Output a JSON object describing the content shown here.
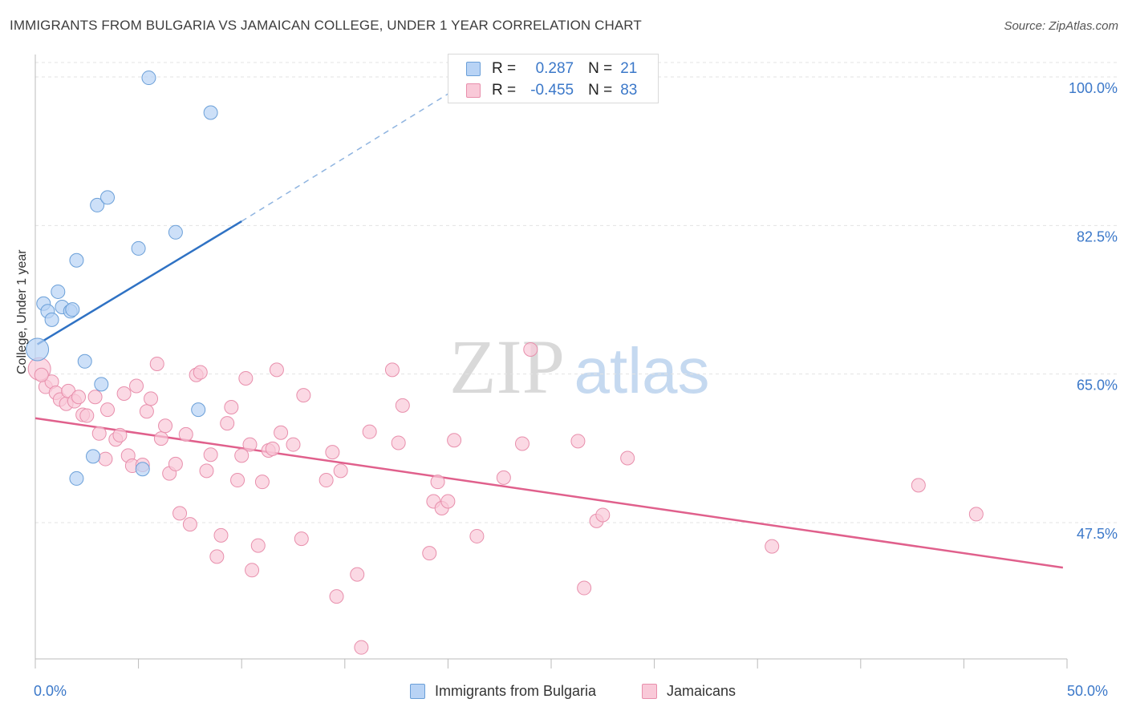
{
  "title": "IMMIGRANTS FROM BULGARIA VS JAMAICAN COLLEGE, UNDER 1 YEAR CORRELATION CHART",
  "source": "Source: ZipAtlas.com",
  "watermark": {
    "zip": "ZIP",
    "atlas": "atlas"
  },
  "legend_top": {
    "rows": [
      {
        "r_label": "R =",
        "r_value": "0.287",
        "n_label": "N =",
        "n_value": "21"
      },
      {
        "r_label": "R =",
        "r_value": "-0.455",
        "n_label": "N =",
        "n_value": "83"
      }
    ]
  },
  "colors": {
    "blue_fill": "#b8d3f5",
    "blue_stroke": "#6a9fd8",
    "blue_line": "#2f72c4",
    "pink_fill": "#f9c9d8",
    "pink_stroke": "#e88fac",
    "pink_line": "#e0608c",
    "axis_label": "#3b78c9",
    "grid": "#e3e3e3"
  },
  "chart_data": {
    "type": "scatter",
    "title": "IMMIGRANTS FROM BULGARIA VS JAMAICAN COLLEGE, UNDER 1 YEAR CORRELATION CHART",
    "xlabel": "",
    "ylabel": "College, Under 1 year",
    "xlim": [
      0,
      50
    ],
    "ylim": [
      31,
      102
    ],
    "x_tick_labels": [
      "0.0%",
      "50.0%"
    ],
    "y_ticks": [
      47.5,
      65.0,
      82.5,
      100.0
    ],
    "y_tick_labels": [
      "47.5%",
      "65.0%",
      "82.5%",
      "100.0%"
    ],
    "grid": true,
    "legend_position": "bottom",
    "series": [
      {
        "name": "Immigrants from Bulgaria",
        "color": "#b8d3f5",
        "points": [
          {
            "x": 0.1,
            "y": 67.9,
            "big": true
          },
          {
            "x": 0.4,
            "y": 73.3
          },
          {
            "x": 0.6,
            "y": 72.4
          },
          {
            "x": 0.8,
            "y": 71.4
          },
          {
            "x": 1.1,
            "y": 74.7
          },
          {
            "x": 1.3,
            "y": 72.9
          },
          {
            "x": 1.7,
            "y": 72.4
          },
          {
            "x": 1.8,
            "y": 72.6
          },
          {
            "x": 2.0,
            "y": 78.4
          },
          {
            "x": 2.4,
            "y": 66.5
          },
          {
            "x": 2.8,
            "y": 55.3
          },
          {
            "x": 2.0,
            "y": 52.7
          },
          {
            "x": 3.0,
            "y": 84.9
          },
          {
            "x": 3.2,
            "y": 63.8
          },
          {
            "x": 3.5,
            "y": 85.8
          },
          {
            "x": 5.0,
            "y": 79.8
          },
          {
            "x": 5.2,
            "y": 53.8
          },
          {
            "x": 5.5,
            "y": 99.9
          },
          {
            "x": 6.8,
            "y": 81.7
          },
          {
            "x": 7.9,
            "y": 60.8
          },
          {
            "x": 8.5,
            "y": 95.8
          }
        ],
        "trend": {
          "x1": 0.1,
          "y1": 68.5,
          "x2": 10.0,
          "y2": 83.0,
          "dash_x2": 21.0,
          "dash_y2": 99.5
        }
      },
      {
        "name": "Jamaicans",
        "color": "#f9c9d8",
        "points": [
          {
            "x": 0.2,
            "y": 65.6,
            "big": true
          },
          {
            "x": 0.5,
            "y": 63.5
          },
          {
            "x": 0.8,
            "y": 64.1
          },
          {
            "x": 1.0,
            "y": 62.8
          },
          {
            "x": 1.2,
            "y": 62.0
          },
          {
            "x": 1.5,
            "y": 61.5
          },
          {
            "x": 1.6,
            "y": 63.0
          },
          {
            "x": 1.9,
            "y": 61.8
          },
          {
            "x": 2.1,
            "y": 62.3
          },
          {
            "x": 2.3,
            "y": 60.2
          },
          {
            "x": 2.5,
            "y": 60.1
          },
          {
            "x": 2.9,
            "y": 62.3
          },
          {
            "x": 3.1,
            "y": 58.0
          },
          {
            "x": 3.4,
            "y": 55.0
          },
          {
            "x": 3.5,
            "y": 60.8
          },
          {
            "x": 3.9,
            "y": 57.3
          },
          {
            "x": 4.1,
            "y": 57.8
          },
          {
            "x": 4.3,
            "y": 62.7
          },
          {
            "x": 4.5,
            "y": 55.4
          },
          {
            "x": 4.7,
            "y": 54.2
          },
          {
            "x": 4.9,
            "y": 63.6
          },
          {
            "x": 5.2,
            "y": 54.3
          },
          {
            "x": 5.4,
            "y": 60.6
          },
          {
            "x": 5.6,
            "y": 62.1
          },
          {
            "x": 5.9,
            "y": 66.2
          },
          {
            "x": 6.1,
            "y": 57.4
          },
          {
            "x": 6.3,
            "y": 58.9
          },
          {
            "x": 6.5,
            "y": 53.3
          },
          {
            "x": 6.8,
            "y": 54.4
          },
          {
            "x": 7.0,
            "y": 48.6
          },
          {
            "x": 7.3,
            "y": 57.9
          },
          {
            "x": 7.5,
            "y": 47.3
          },
          {
            "x": 7.8,
            "y": 64.9
          },
          {
            "x": 8.0,
            "y": 65.2
          },
          {
            "x": 8.3,
            "y": 53.6
          },
          {
            "x": 8.5,
            "y": 55.5
          },
          {
            "x": 8.8,
            "y": 43.5
          },
          {
            "x": 9.0,
            "y": 46.0
          },
          {
            "x": 9.3,
            "y": 59.2
          },
          {
            "x": 9.5,
            "y": 61.1
          },
          {
            "x": 9.8,
            "y": 52.5
          },
          {
            "x": 10.0,
            "y": 55.4
          },
          {
            "x": 10.2,
            "y": 64.5
          },
          {
            "x": 10.4,
            "y": 56.7
          },
          {
            "x": 10.5,
            "y": 41.9
          },
          {
            "x": 10.8,
            "y": 44.8
          },
          {
            "x": 11.0,
            "y": 52.3
          },
          {
            "x": 11.3,
            "y": 56.0
          },
          {
            "x": 11.5,
            "y": 56.2
          },
          {
            "x": 11.7,
            "y": 65.5
          },
          {
            "x": 11.9,
            "y": 58.1
          },
          {
            "x": 12.5,
            "y": 56.7
          },
          {
            "x": 12.9,
            "y": 45.6
          },
          {
            "x": 13.0,
            "y": 62.5
          },
          {
            "x": 14.1,
            "y": 52.5
          },
          {
            "x": 14.4,
            "y": 55.8
          },
          {
            "x": 14.6,
            "y": 38.8
          },
          {
            "x": 14.8,
            "y": 53.6
          },
          {
            "x": 15.6,
            "y": 41.4
          },
          {
            "x": 15.8,
            "y": 32.8
          },
          {
            "x": 16.2,
            "y": 58.2
          },
          {
            "x": 17.3,
            "y": 65.5
          },
          {
            "x": 17.6,
            "y": 56.9
          },
          {
            "x": 17.8,
            "y": 61.3
          },
          {
            "x": 19.1,
            "y": 43.9
          },
          {
            "x": 19.3,
            "y": 50.0
          },
          {
            "x": 19.5,
            "y": 52.3
          },
          {
            "x": 19.7,
            "y": 49.2
          },
          {
            "x": 20.0,
            "y": 50.0
          },
          {
            "x": 20.3,
            "y": 57.2
          },
          {
            "x": 21.4,
            "y": 45.9
          },
          {
            "x": 22.7,
            "y": 52.8
          },
          {
            "x": 23.6,
            "y": 56.8
          },
          {
            "x": 24.0,
            "y": 67.9
          },
          {
            "x": 26.3,
            "y": 57.1
          },
          {
            "x": 26.6,
            "y": 39.8
          },
          {
            "x": 27.2,
            "y": 47.7
          },
          {
            "x": 27.5,
            "y": 48.4
          },
          {
            "x": 28.7,
            "y": 55.1
          },
          {
            "x": 35.7,
            "y": 44.7
          },
          {
            "x": 42.8,
            "y": 51.9
          },
          {
            "x": 45.6,
            "y": 48.5
          },
          {
            "x": 0.3,
            "y": 64.9
          }
        ],
        "trend": {
          "x1": 0.0,
          "y1": 59.8,
          "x2": 49.8,
          "y2": 42.2
        }
      }
    ]
  },
  "legend_bottom": {
    "items": [
      {
        "label": "Immigrants from Bulgaria"
      },
      {
        "label": "Jamaicans"
      }
    ]
  }
}
